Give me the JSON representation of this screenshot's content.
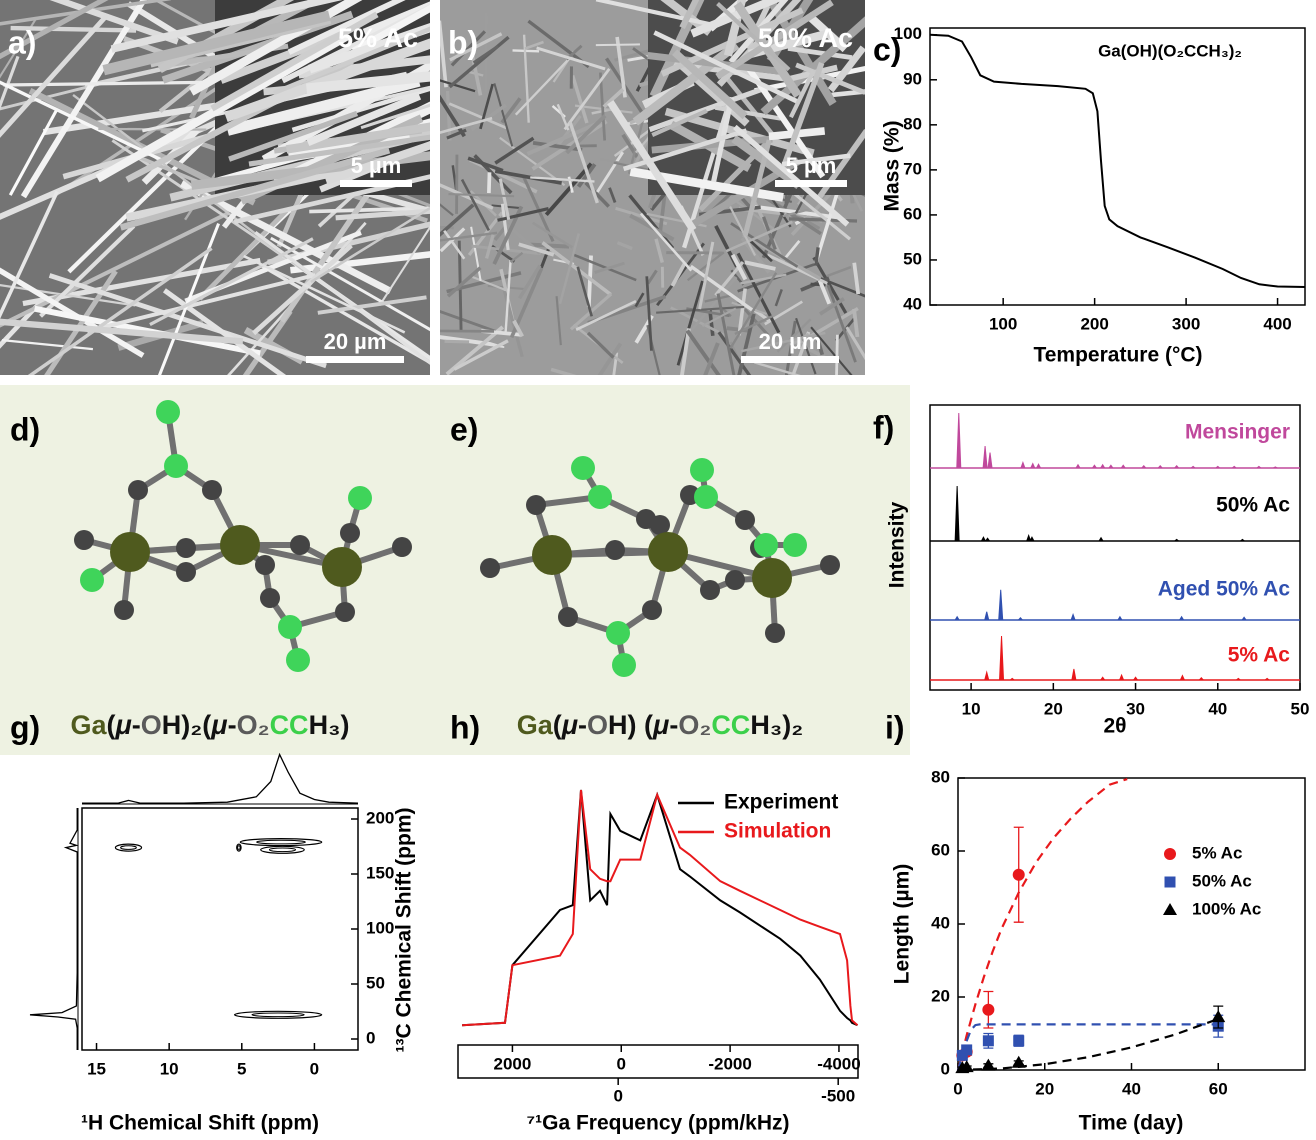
{
  "images": {
    "a": {
      "panel_label": "a)",
      "inset_label": "5% Ac",
      "inset_scale": "5 µm",
      "scale": "20 µm"
    },
    "b": {
      "panel_label": "b)",
      "inset_label": "50% Ac",
      "inset_scale": "5 µm",
      "scale": "20 µm"
    }
  },
  "structures": {
    "d": {
      "panel_label": "d)",
      "formula": [
        "Ga",
        "(",
        "μ",
        "-",
        "O",
        "H)₂(",
        "μ",
        "-",
        "O₂",
        "CC",
        "H₃)"
      ]
    },
    "e": {
      "panel_label": "e)",
      "formula": [
        "Ga",
        "(",
        "μ",
        "-",
        "O",
        "H) (",
        "μ",
        "-",
        "O₂",
        "CC",
        "H₃)₂"
      ]
    }
  },
  "chart_data": [
    {
      "type": "line",
      "panel_label": "c)",
      "annotation": "Ga(OH)(O₂CCH₃)₂",
      "xlabel": "Temperature (°C)",
      "ylabel": "Mass (%)",
      "xlim": [
        20,
        430
      ],
      "ylim": [
        40,
        101.5
      ],
      "xticks": [
        100,
        200,
        300,
        400
      ],
      "yticks": [
        40,
        50,
        60,
        70,
        80,
        90,
        100
      ],
      "x": [
        20,
        40,
        55,
        65,
        75,
        90,
        120,
        160,
        190,
        198,
        203,
        207,
        211,
        216,
        225,
        250,
        280,
        310,
        340,
        360,
        380,
        400,
        430
      ],
      "series": [
        {
          "color": "#000000",
          "values": [
            100,
            99.8,
            98.5,
            95,
            91,
            89.6,
            89.1,
            88.6,
            88,
            87,
            83,
            72,
            62,
            59,
            57.5,
            55,
            52.8,
            50.5,
            48,
            46,
            44.6,
            44.1,
            44
          ]
        }
      ]
    },
    {
      "type": "spectrum",
      "panel_label": "f)",
      "xlabel": "2θ",
      "ylabel": "Intensity",
      "xlim": [
        5,
        50
      ],
      "xticks": [
        10,
        20,
        30,
        40,
        50
      ],
      "series": [
        {
          "name": "Mensinger",
          "color": "#c0489c",
          "x": [
            8.5,
            11.7,
            12.3,
            16.3,
            17.5,
            18.2,
            23,
            25,
            26,
            27,
            28.5,
            31,
            33,
            35,
            37,
            40,
            42,
            45,
            47
          ],
          "values": [
            100,
            40,
            28,
            10,
            8,
            7,
            6,
            5,
            6,
            5,
            5,
            4,
            4,
            4,
            3,
            3,
            3,
            3,
            2
          ]
        },
        {
          "name": "50% Ac",
          "color": "#000000",
          "x": [
            8.3,
            11.5,
            12,
            17,
            17.4,
            25.8,
            35,
            43
          ],
          "values": [
            100,
            7,
            5,
            10,
            7,
            6,
            3,
            3
          ]
        },
        {
          "name": "Aged 50% Ac",
          "color": "#3050b0",
          "x": [
            8.3,
            11.9,
            13.6,
            16,
            22.4,
            28.1,
            35.6,
            43.2
          ],
          "values": [
            6,
            15,
            55,
            4,
            10,
            6,
            6,
            5
          ]
        },
        {
          "name": "5% Ac",
          "color": "#e8191c",
          "x": [
            11.9,
            13.7,
            15,
            22.5,
            26,
            28.3,
            30,
            35.7,
            38,
            42.5,
            46
          ],
          "values": [
            14,
            80,
            3,
            20,
            5,
            9,
            5,
            8,
            4,
            3,
            3
          ]
        }
      ]
    },
    {
      "type": "contour",
      "panel_label": "g)",
      "xlabel": "¹H Chemical Shift (ppm)",
      "ylabel": "¹³C Chemical Shift (ppm)",
      "xlim": [
        16,
        -3
      ],
      "ylim": [
        -10,
        210
      ],
      "xticks": [
        15,
        10,
        5,
        0
      ],
      "yticks": [
        0,
        50,
        100,
        150,
        200
      ],
      "x": [
        2.5,
        2.3,
        2.2,
        12.8,
        5.2
      ],
      "values": [
        22,
        179,
        172,
        174,
        174
      ],
      "x_widths": [
        6,
        5.6,
        3,
        1.8,
        0.3
      ],
      "top_projection": {
        "x": [
          16,
          13.5,
          12.8,
          12,
          9,
          6,
          4,
          3,
          2.4,
          1.8,
          1,
          0,
          -1,
          -3
        ],
        "values": [
          1,
          1,
          4,
          1,
          1,
          2,
          8,
          25,
          55,
          35,
          12,
          5,
          2,
          1
        ]
      },
      "left_projection": {
        "y": [
          -10,
          10,
          18,
          20,
          22,
          24,
          30,
          60,
          150,
          170,
          174,
          176,
          178,
          190,
          210
        ],
        "values": [
          1,
          1,
          3,
          25,
          60,
          20,
          2,
          1,
          1,
          1,
          15,
          2,
          10,
          1,
          1
        ]
      }
    },
    {
      "type": "line",
      "panel_label": "h)",
      "xlabel": "⁷¹Ga Frequency (ppm/kHz)",
      "legend": "upper right",
      "xlim": [
        3000,
        -4350
      ],
      "xticks": [
        2000,
        0,
        -2000,
        -4000
      ],
      "x2lim": [
        364,
        -545
      ],
      "x2ticks": [
        0,
        -500
      ],
      "x": [
        2925,
        2136,
        2000,
        1125,
        890,
        740,
        570,
        390,
        260,
        200,
        20,
        -350,
        -660,
        -1080,
        -1260,
        -1820,
        -2180,
        -2920,
        -3290,
        -3650,
        -4020,
        -4150,
        -4210,
        -4240,
        -4340
      ],
      "series": [
        {
          "name": "Experiment",
          "color": "#000000",
          "values": [
            2,
            3,
            27,
            50,
            52,
            100,
            54,
            58,
            52,
            90,
            83,
            79,
            98,
            67,
            64,
            54,
            49,
            38,
            31,
            21,
            8,
            5,
            4,
            3,
            2
          ]
        },
        {
          "name": "Simulation",
          "color": "#e8191c",
          "values": [
            2,
            3,
            27,
            31,
            40,
            100,
            67,
            63,
            62,
            62,
            71,
            71,
            98,
            76,
            73,
            62,
            58,
            50,
            46,
            43,
            40,
            29,
            10,
            4,
            2
          ]
        }
      ]
    },
    {
      "type": "scatter",
      "panel_label": "i)",
      "xlabel": "Time (day)",
      "ylabel": "Length (µm)",
      "legend": "upper right",
      "xlim": [
        0,
        80
      ],
      "ylim": [
        0,
        80
      ],
      "xticks": [
        0,
        20,
        40,
        60
      ],
      "yticks": [
        0,
        20,
        40,
        60,
        80
      ],
      "series": [
        {
          "name": "5% Ac",
          "color": "#e8191c",
          "marker": "circle",
          "x": [
            1,
            2,
            7,
            14
          ],
          "values": [
            4,
            5,
            16.5,
            53.5
          ],
          "errors": [
            0.5,
            1,
            5,
            13
          ],
          "fit": {
            "x": [
              0,
              2,
              4,
              6,
              8,
              10,
              14,
              18,
              22,
              26,
              30,
              35,
              39
            ],
            "values": [
              0,
              9.5,
              18,
              25.6,
              32.5,
              38.6,
              48.6,
              56.9,
              63.5,
              68.9,
              73.5,
              78.2,
              79.7
            ]
          }
        },
        {
          "name": "50% Ac",
          "color": "#3050b0",
          "marker": "square",
          "x": [
            1,
            2,
            7,
            14,
            60
          ],
          "values": [
            4,
            5.5,
            8,
            8,
            12
          ],
          "errors": [
            0.5,
            1,
            2,
            1.5,
            3
          ],
          "fit": {
            "x": [
              0,
              1,
              2,
              3,
              4,
              5,
              60
            ],
            "values": [
              0,
              4,
              8,
              11,
              12.3,
              12.5,
              12.5
            ]
          }
        },
        {
          "name": "100% Ac",
          "color": "#000000",
          "marker": "triangle",
          "x": [
            1,
            2,
            7,
            14,
            60
          ],
          "values": [
            0.5,
            0.8,
            1.2,
            2,
            14.5
          ],
          "errors": [
            0.3,
            0.3,
            0.5,
            0.5,
            3
          ],
          "fit": {
            "x": [
              0,
              10,
              20,
              30,
              40,
              50,
              60
            ],
            "values": [
              0,
              0.4,
              1.6,
              3.5,
              6.2,
              9.7,
              14
            ]
          }
        }
      ]
    }
  ]
}
